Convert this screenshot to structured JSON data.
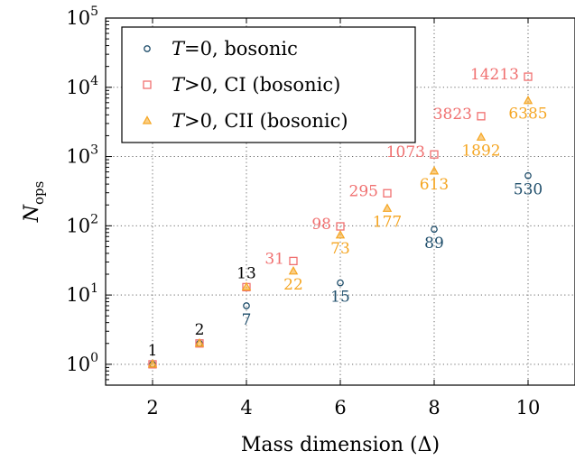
{
  "chart_data": {
    "type": "scatter",
    "xlabel": "Mass dimension (Δ)",
    "ylabel": {
      "base": "N",
      "sub": "ops"
    },
    "xlim": [
      1,
      11
    ],
    "ylim": [
      0.5,
      100000
    ],
    "yscale": "log",
    "grid": true,
    "legend_position": "top-left",
    "x_ticks": [
      {
        "value": 2,
        "label": "2"
      },
      {
        "value": 4,
        "label": "4"
      },
      {
        "value": 6,
        "label": "6"
      },
      {
        "value": 8,
        "label": "8"
      },
      {
        "value": 10,
        "label": "10"
      }
    ],
    "y_ticks": [
      {
        "value": 1,
        "exp": "0"
      },
      {
        "value": 10,
        "exp": "1"
      },
      {
        "value": 100,
        "exp": "2"
      },
      {
        "value": 1000,
        "exp": "3"
      },
      {
        "value": 10000,
        "exp": "4"
      },
      {
        "value": 100000,
        "exp": "5"
      }
    ],
    "series": [
      {
        "name": {
          "var": "T",
          "rel": "=0",
          "rest": ", bosonic"
        },
        "marker": "circle",
        "color": "#1f4e6b",
        "points": [
          {
            "x": 2,
            "y": 1
          },
          {
            "x": 3,
            "y": 2
          },
          {
            "x": 4,
            "y": 7,
            "label": "7"
          },
          {
            "x": 6,
            "y": 15,
            "label": "15"
          },
          {
            "x": 8,
            "y": 89,
            "label": "89"
          },
          {
            "x": 10,
            "y": 530,
            "label": "530"
          }
        ]
      },
      {
        "name": {
          "var": "T",
          "rel": ">0",
          "rest": ", CI (bosonic)"
        },
        "marker": "square",
        "color": "#f07070",
        "points": [
          {
            "x": 2,
            "y": 1
          },
          {
            "x": 3,
            "y": 2
          },
          {
            "x": 4,
            "y": 13
          },
          {
            "x": 5,
            "y": 31,
            "label": "31"
          },
          {
            "x": 6,
            "y": 98,
            "label": "98"
          },
          {
            "x": 7,
            "y": 295,
            "label": "295"
          },
          {
            "x": 8,
            "y": 1073,
            "label": "1073"
          },
          {
            "x": 9,
            "y": 3823,
            "label": "3823"
          },
          {
            "x": 10,
            "y": 14213,
            "label": "14213"
          }
        ]
      },
      {
        "name": {
          "var": "T",
          "rel": ">0",
          "rest": ", CII (bosonic)"
        },
        "marker": "triangle",
        "color": "#f5a623",
        "points": [
          {
            "x": 2,
            "y": 1
          },
          {
            "x": 3,
            "y": 2
          },
          {
            "x": 4,
            "y": 13
          },
          {
            "x": 5,
            "y": 22,
            "label": "22"
          },
          {
            "x": 6,
            "y": 73,
            "label": "73"
          },
          {
            "x": 7,
            "y": 177,
            "label": "177"
          },
          {
            "x": 8,
            "y": 613,
            "label": "613"
          },
          {
            "x": 9,
            "y": 1892,
            "label": "1892"
          },
          {
            "x": 10,
            "y": 6385,
            "label": "6385"
          }
        ]
      }
    ],
    "shared_labels": [
      {
        "x": 2,
        "y": 1,
        "label": "1",
        "color": "#000000"
      },
      {
        "x": 3,
        "y": 2,
        "label": "2",
        "color": "#000000"
      },
      {
        "x": 4,
        "y": 13,
        "label": "13",
        "color": "#000000"
      }
    ]
  }
}
